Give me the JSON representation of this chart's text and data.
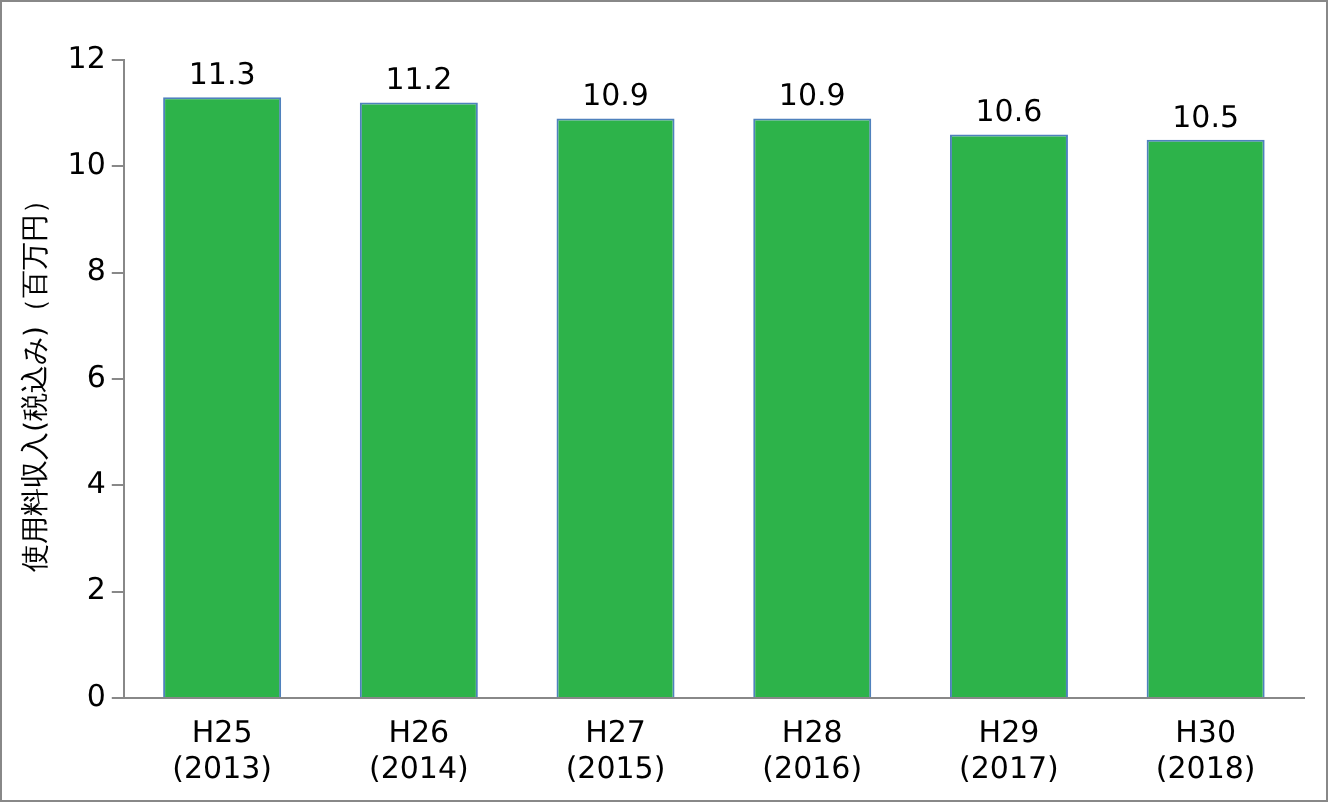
{
  "chart_data": {
    "type": "bar",
    "ylabel": "使用料収入(税込み)（百万円）",
    "categories": [
      "H25 (2013)",
      "H26 (2014)",
      "H27 (2015)",
      "H28 (2016)",
      "H29 (2017)",
      "H30 (2018)"
    ],
    "values": [
      11.3,
      11.2,
      10.9,
      10.9,
      10.6,
      10.5
    ],
    "color": "#2db34a",
    "ylim": [
      0,
      12
    ],
    "yticks": [
      0,
      2,
      4,
      6,
      8,
      10,
      12
    ],
    "grid": false,
    "data_labels": true
  }
}
